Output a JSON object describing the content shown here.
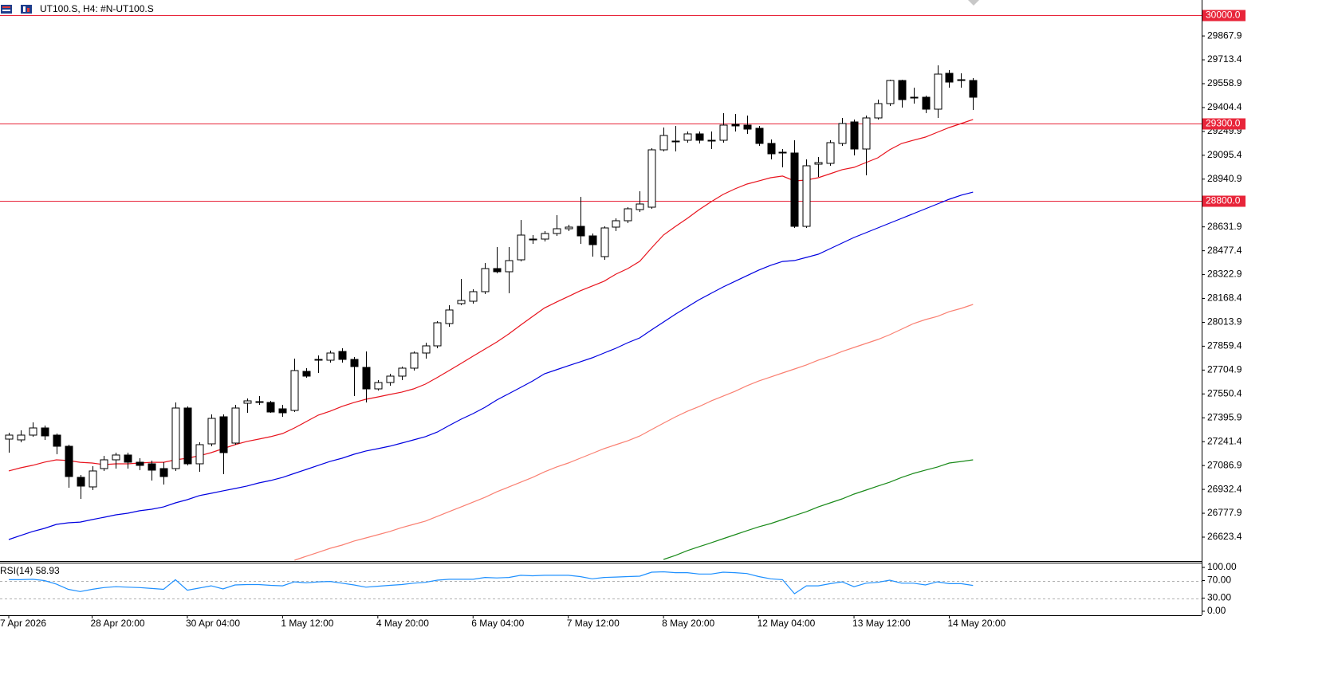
{
  "chart_data": {
    "type": "candlestick",
    "title": "UT100.S, H4:  #N-UT100.S",
    "categories": [
      "7 Apr 2026",
      null,
      null,
      null,
      null,
      null,
      null,
      "28 Apr 20:00",
      null,
      null,
      null,
      null,
      null,
      null,
      null,
      "30 Apr 04:00",
      null,
      null,
      null,
      null,
      null,
      null,
      null,
      "1 May 12:00",
      null,
      null,
      null,
      null,
      null,
      null,
      null,
      "4 May 20:00",
      null,
      null,
      null,
      null,
      null,
      null,
      null,
      "6 May 04:00",
      null,
      null,
      null,
      null,
      null,
      null,
      null,
      "7 May 12:00",
      null,
      null,
      null,
      null,
      null,
      null,
      null,
      "8 May 20:00",
      null,
      null,
      null,
      null,
      null,
      null,
      null,
      "12 May 04:00",
      null,
      null,
      null,
      null,
      null,
      null,
      null,
      "13 May 12:00",
      null,
      null,
      null,
      null,
      null,
      null,
      null,
      "14 May 20:00",
      null,
      null
    ],
    "candles": {
      "up_color": "#ffffff",
      "down_color": "#000000",
      "edge_color": "#000000",
      "open": [
        27258.0,
        27252.9,
        27283.8,
        27330.2,
        27283.8,
        27211.6,
        27010.4,
        26948.5,
        27067.2,
        27123.9,
        27154.9,
        27108.4,
        27098.1,
        27067.2,
        27067.2,
        27459.2,
        27098.1,
        27227.1,
        27402.4,
        27232.2,
        27490.1,
        27495.3,
        27495.3,
        27454.0,
        27443.7,
        27696.5,
        27768.7,
        27768.7,
        27825.4,
        27773.9,
        27722.3,
        27583.0,
        27624.3,
        27665.6,
        27717.2,
        27815.2,
        27861.6,
        28006.0,
        28135.0,
        28150.5,
        28212.4,
        28362.0,
        28341.4,
        28418.7,
        28547.7,
        28552.9,
        28589.0,
        28619.9,
        28635.4,
        28573.5,
        28439.4,
        28630.3,
        28671.6,
        28743.8,
        28759.3,
        29130.7,
        29182.3,
        29192.6,
        29233.9,
        29187.4,
        29192.6,
        29295.8,
        29290.7,
        29270.0,
        29172.0,
        29115.2,
        29110.1,
        28635.4,
        29037.8,
        29043.0,
        29172.0,
        29311.3,
        29135.9,
        29337.1,
        29430.0,
        29579.5,
        29471.2,
        29471.2,
        29393.8,
        29626.0,
        29584.7,
        29579.5
      ],
      "high": [
        27299.3,
        27314.8,
        27366.3,
        27345.7,
        27294.1,
        27221.9,
        27025.9,
        27082.7,
        27149.7,
        27170.3,
        27170.3,
        27134.2,
        27118.8,
        27108.4,
        27495.3,
        27469.5,
        27237.4,
        27417.9,
        27417.9,
        27479.8,
        27521.1,
        27536.6,
        27505.6,
        27479.8,
        27779.1,
        27717.2,
        27799.7,
        27830.6,
        27846.1,
        27789.4,
        27825.4,
        27639.8,
        27681.1,
        27727.5,
        27825.4,
        27882.2,
        28021.5,
        28124.7,
        28294.9,
        28227.9,
        28398.1,
        28501.3,
        28501.3,
        28676.7,
        28578.7,
        28604.5,
        28707.7,
        28645.8,
        28826.3,
        28589.0,
        28635.4,
        28687.0,
        28759.3,
        28862.4,
        29141.0,
        29275.2,
        29285.5,
        29249.4,
        29249.4,
        29249.4,
        29368.0,
        29362.9,
        29352.6,
        29285.5,
        29197.8,
        29135.9,
        29192.6,
        29068.8,
        29084.3,
        29192.6,
        29337.1,
        29326.8,
        29352.6,
        29455.7,
        29584.7,
        29584.7,
        29533.1,
        29481.5,
        29677.6,
        29646.7,
        29626.0,
        29595.0
      ],
      "low": [
        27170.3,
        27237.4,
        27273.5,
        27252.9,
        27160.0,
        26943.3,
        26871.1,
        26927.8,
        27051.7,
        27067.2,
        27067.2,
        27056.9,
        26989.8,
        26964.0,
        27051.7,
        27087.8,
        27046.5,
        27211.6,
        27031.1,
        27221.9,
        27428.2,
        27479.8,
        27428.2,
        27402.4,
        27433.4,
        27655.2,
        27686.2,
        27753.3,
        27753.3,
        27536.6,
        27495.3,
        27572.7,
        27603.6,
        27639.8,
        27701.7,
        27779.1,
        27846.1,
        27985.4,
        28124.7,
        28135.0,
        28196.9,
        28331.0,
        28202.1,
        28408.4,
        28521.9,
        28537.4,
        28573.5,
        28604.5,
        28521.9,
        28439.4,
        28418.7,
        28604.5,
        28656.1,
        28728.3,
        28749.0,
        29120.4,
        29120.4,
        29177.1,
        29172.0,
        29135.9,
        29177.1,
        29249.4,
        29233.9,
        29156.5,
        29068.8,
        29017.2,
        28625.1,
        28625.1,
        28955.3,
        29027.5,
        29156.5,
        29094.6,
        28965.6,
        29326.8,
        29414.4,
        29404.1,
        29430.0,
        29368.0,
        29337.1,
        29533.1,
        29533.1,
        29388.7
      ],
      "close": [
        27283.8,
        27283.8,
        27330.2,
        27278.7,
        27211.6,
        27015.6,
        26953.6,
        27051.7,
        27123.9,
        27154.9,
        27108.4,
        27087.8,
        27056.9,
        27015.6,
        27459.2,
        27098.1,
        27221.9,
        27392.1,
        27170.3,
        27459.2,
        27505.6,
        27500.5,
        27433.4,
        27428.2,
        27701.7,
        27665.6,
        27773.9,
        27815.2,
        27773.9,
        27727.5,
        27583.0,
        27624.3,
        27665.6,
        27717.2,
        27815.2,
        27861.6,
        28011.2,
        28093.8,
        28155.7,
        28212.4,
        28362.0,
        28341.4,
        28413.6,
        28578.7,
        28552.9,
        28589.0,
        28619.9,
        28630.3,
        28573.5,
        28516.8,
        28625.1,
        28671.6,
        28749.0,
        28779.9,
        29130.7,
        29223.6,
        29187.4,
        29233.9,
        29192.6,
        29192.6,
        29290.7,
        29285.5,
        29264.8,
        29172.0,
        29104.9,
        29110.1,
        28635.4,
        29027.5,
        29048.2,
        29177.1,
        29301.0,
        29135.9,
        29337.1,
        29430.0,
        29579.5,
        29455.7,
        29466.0,
        29393.8,
        29620.8,
        29569.2,
        29579.5,
        29471.2
      ]
    },
    "series": [
      {
        "color": "#fa8072",
        "values": [
          null,
          null,
          null,
          null,
          null,
          null,
          null,
          null,
          null,
          null,
          null,
          null,
          null,
          null,
          null,
          null,
          null,
          null,
          null,
          null,
          null,
          null,
          null,
          null,
          26474,
          26500,
          26525,
          26551,
          26572,
          26598,
          26618,
          26639,
          26660,
          26685,
          26706,
          26727,
          26758,
          26789,
          26819,
          26850,
          26881,
          26917,
          26948,
          26979,
          27010,
          27046,
          27077,
          27103,
          27134,
          27165,
          27196,
          27222,
          27247,
          27278,
          27320,
          27361,
          27402,
          27438,
          27469,
          27505,
          27536,
          27567,
          27603,
          27634,
          27660,
          27686,
          27712,
          27738,
          27769,
          27795,
          27825,
          27851,
          27877,
          27903,
          27934,
          27970,
          28006,
          28032,
          28052,
          28083,
          28104,
          28130
        ]
      },
      {
        "color": "#1a8a1a",
        "values": [
          null,
          null,
          null,
          null,
          null,
          null,
          null,
          null,
          null,
          null,
          null,
          null,
          null,
          null,
          null,
          null,
          null,
          null,
          null,
          null,
          null,
          null,
          null,
          null,
          null,
          null,
          null,
          null,
          null,
          null,
          null,
          null,
          null,
          null,
          null,
          null,
          null,
          null,
          null,
          null,
          null,
          null,
          null,
          null,
          null,
          null,
          null,
          null,
          null,
          null,
          null,
          null,
          null,
          null,
          null,
          26479,
          26505,
          26536,
          26562,
          26587,
          26613,
          26639,
          26665,
          26690,
          26711,
          26737,
          26763,
          26788,
          26819,
          26845,
          26871,
          26902,
          26928,
          26954,
          26979,
          27010,
          27036,
          27057,
          27077,
          27103,
          27113,
          27124
        ]
      },
      {
        "color": "#0000e0",
        "values": [
          26608,
          26634,
          26660,
          26680,
          26706,
          26716,
          26721,
          26737,
          26752,
          26768,
          26778,
          26794,
          26804,
          26819,
          26845,
          26866,
          26892,
          26907,
          26923,
          26938,
          26954,
          26974,
          26990,
          27010,
          27036,
          27062,
          27088,
          27114,
          27134,
          27160,
          27181,
          27196,
          27212,
          27232,
          27253,
          27274,
          27304,
          27346,
          27387,
          27423,
          27464,
          27511,
          27552,
          27593,
          27634,
          27681,
          27707,
          27733,
          27758,
          27784,
          27815,
          27846,
          27882,
          27913,
          27965,
          28016,
          28067,
          28114,
          28161,
          28202,
          28243,
          28279,
          28316,
          28352,
          28383,
          28408,
          28414,
          28434,
          28455,
          28491,
          28527,
          28563,
          28594,
          28625,
          28656,
          28687,
          28718,
          28749,
          28780,
          28811,
          28837,
          28857
        ]
      },
      {
        "color": "#e8141e",
        "values": [
          27052,
          27072,
          27088,
          27109,
          27124,
          27119,
          27108,
          27103,
          27093,
          27098,
          27098,
          27103,
          27108,
          27108,
          27124,
          27134,
          27150,
          27170,
          27196,
          27222,
          27243,
          27258,
          27274,
          27294,
          27330,
          27372,
          27413,
          27439,
          27470,
          27495,
          27516,
          27531,
          27547,
          27562,
          27583,
          27614,
          27657,
          27702,
          27748,
          27795,
          27841,
          27887,
          27939,
          27996,
          28052,
          28107,
          28145,
          28181,
          28218,
          28249,
          28280,
          28326,
          28362,
          28409,
          28496,
          28579,
          28635,
          28687,
          28744,
          28795,
          28842,
          28878,
          28909,
          28929,
          28950,
          28961,
          28929,
          28935,
          28950,
          28976,
          29002,
          29017,
          29048,
          29079,
          29131,
          29172,
          29193,
          29213,
          29244,
          29275,
          29301,
          29327
        ]
      }
    ],
    "ylim": [
      26468.6,
      30100.6
    ],
    "yticks": [
      29867.9,
      29713.4,
      29558.9,
      29404.4,
      29249.9,
      29095.4,
      28940.9,
      28631.9,
      28477.4,
      28322.9,
      28168.4,
      28013.9,
      27859.4,
      27704.9,
      27550.4,
      27395.9,
      27241.4,
      27086.9,
      26932.4,
      26777.9,
      26623.4
    ],
    "hlines": {
      "color": "#e8253a",
      "levels": [
        {
          "value": 30000,
          "label": "30000.0"
        },
        {
          "value": 29300,
          "label": "29300.0"
        },
        {
          "value": 28800,
          "label": "28800.0"
        }
      ]
    },
    "rsi": {
      "type": "line",
      "title": "RSI(14) 58.93",
      "color": "#1e90ff",
      "ylim": [
        0,
        100
      ],
      "yticks": [
        {
          "value": 100,
          "label": "100.00"
        },
        {
          "value": 70,
          "label": "70.00"
        },
        {
          "value": 30,
          "label": "30.00"
        },
        {
          "value": 0,
          "label": "0.00"
        }
      ],
      "values": [
        72,
        72,
        73,
        70,
        62,
        50,
        45,
        50,
        54,
        56,
        55,
        54,
        52,
        50,
        72,
        48,
        53,
        58,
        51,
        60,
        61,
        61,
        59,
        58,
        67,
        65,
        67,
        68,
        64,
        60,
        55,
        57,
        59,
        61,
        64,
        66,
        71,
        73,
        73,
        73,
        77,
        76,
        77,
        82,
        81,
        82,
        82,
        82,
        79,
        74,
        77,
        78,
        79,
        80,
        89,
        90,
        88,
        88,
        85,
        85,
        89,
        88,
        86,
        79,
        74,
        72,
        40,
        58,
        58,
        63,
        67,
        56,
        64,
        66,
        71,
        64,
        64,
        60,
        67,
        63,
        63,
        58.93
      ]
    }
  }
}
